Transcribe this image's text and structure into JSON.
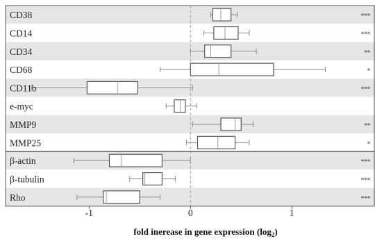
{
  "chart_data": {
    "type": "boxplot",
    "xlabel": "fold inerease in gene expression (log",
    "xlabel_subscript": "2",
    "xlabel_suffix": ")",
    "xlim": [
      -1.55,
      1.82
    ],
    "xticks": [
      -1,
      0,
      1
    ],
    "xtick_labels": [
      "-1",
      "0",
      "1"
    ],
    "reference_line": 0,
    "groups": [
      {
        "rows": [
          {
            "label": "CD38",
            "whisker_low": 0.2,
            "q1": 0.22,
            "median": 0.3,
            "q3": 0.4,
            "whisker_high": 0.46,
            "significance": "***"
          },
          {
            "label": "CD14",
            "whisker_low": 0.13,
            "q1": 0.23,
            "median": 0.34,
            "q3": 0.47,
            "whisker_high": 0.58,
            "significance": "***"
          },
          {
            "label": "CD34",
            "whisker_low": 0.0,
            "q1": 0.14,
            "median": 0.2,
            "q3": 0.4,
            "whisker_high": 0.65,
            "significance": "**"
          },
          {
            "label": "CD68",
            "whisker_low": -0.3,
            "q1": 0.0,
            "median": 0.28,
            "q3": 0.82,
            "whisker_high": 1.33,
            "significance": "*"
          },
          {
            "label": "CD11b",
            "whisker_low": -1.57,
            "q1": -1.02,
            "median": -0.72,
            "q3": -0.52,
            "whisker_high": 0.02,
            "significance": "***"
          },
          {
            "label": "e-myc",
            "whisker_low": -0.24,
            "q1": -0.16,
            "median": -0.1,
            "q3": -0.05,
            "whisker_high": 0.06,
            "significance": ""
          },
          {
            "label": "MMP9",
            "whisker_low": 0.02,
            "q1": 0.3,
            "median": 0.44,
            "q3": 0.5,
            "whisker_high": 0.62,
            "significance": "**"
          },
          {
            "label": "MMP25",
            "whisker_low": -0.04,
            "q1": 0.07,
            "median": 0.27,
            "q3": 0.44,
            "whisker_high": 0.58,
            "significance": "*"
          }
        ]
      },
      {
        "rows": [
          {
            "label": "β-actin",
            "whisker_low": -1.15,
            "q1": -0.8,
            "median": -0.68,
            "q3": -0.28,
            "whisker_high": 0.0,
            "significance": "***"
          },
          {
            "label": "β-tubulin",
            "whisker_low": -0.6,
            "q1": -0.47,
            "median": -0.45,
            "q3": -0.28,
            "whisker_high": -0.15,
            "significance": "***"
          },
          {
            "label": "Rho",
            "whisker_low": -1.12,
            "q1": -0.86,
            "median": -0.83,
            "q3": -0.5,
            "whisker_high": -0.3,
            "significance": "***"
          }
        ]
      }
    ],
    "row_stripe_color": "#e6e6e6",
    "box_color": "#555555",
    "whisker_color": "#8a8a8a",
    "reference_line_color": "#999999"
  }
}
